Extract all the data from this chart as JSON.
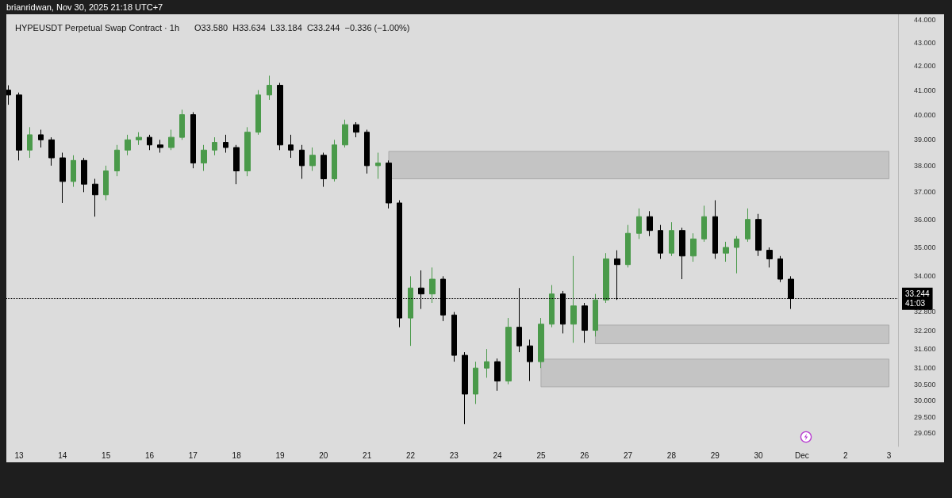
{
  "chart_data": {
    "type": "candlestick",
    "title": "HYPEUSDT Perpetual Swap Contract · 1h",
    "subtitle": "O33.580  H33.634  L33.184  C33.244  −0.336 (−1.00%)",
    "annotations": [
      "brianridwan, Nov 30, 2025 21:18 UTC+7"
    ],
    "x": [
      "2025-11-12T18:00",
      "2025-11-13T00:00",
      "2025-11-13T06:00",
      "2025-11-13T12:00",
      "2025-11-13T18:00",
      "2025-11-14T00:00",
      "2025-11-14T06:00",
      "2025-11-14T12:00",
      "2025-11-14T18:00",
      "2025-11-15T00:00",
      "2025-11-15T06:00",
      "2025-11-15T12:00",
      "2025-11-15T18:00",
      "2025-11-16T00:00",
      "2025-11-16T06:00",
      "2025-11-16T12:00",
      "2025-11-16T18:00",
      "2025-11-17T00:00",
      "2025-11-17T06:00",
      "2025-11-17T12:00",
      "2025-11-17T18:00",
      "2025-11-18T00:00",
      "2025-11-18T06:00",
      "2025-11-18T12:00",
      "2025-11-18T18:00",
      "2025-11-19T00:00",
      "2025-11-19T06:00",
      "2025-11-19T12:00",
      "2025-11-19T18:00",
      "2025-11-20T00:00",
      "2025-11-20T06:00",
      "2025-11-20T12:00",
      "2025-11-20T18:00",
      "2025-11-21T00:00",
      "2025-11-21T06:00",
      "2025-11-21T12:00",
      "2025-11-21T18:00",
      "2025-11-22T00:00",
      "2025-11-22T06:00",
      "2025-11-22T12:00",
      "2025-11-22T18:00",
      "2025-11-23T00:00",
      "2025-11-23T06:00",
      "2025-11-23T12:00",
      "2025-11-23T18:00",
      "2025-11-24T00:00",
      "2025-11-24T06:00",
      "2025-11-24T12:00",
      "2025-11-24T18:00",
      "2025-11-25T00:00",
      "2025-11-25T06:00",
      "2025-11-25T12:00",
      "2025-11-25T18:00",
      "2025-11-26T00:00",
      "2025-11-26T06:00",
      "2025-11-26T12:00",
      "2025-11-26T18:00",
      "2025-11-27T00:00",
      "2025-11-27T06:00",
      "2025-11-27T12:00",
      "2025-11-27T18:00",
      "2025-11-28T00:00",
      "2025-11-28T06:00",
      "2025-11-28T12:00",
      "2025-11-28T18:00",
      "2025-11-29T00:00",
      "2025-11-29T06:00",
      "2025-11-29T12:00",
      "2025-11-29T18:00",
      "2025-11-30T00:00",
      "2025-11-30T06:00",
      "2025-11-30T12:00",
      "2025-11-30T18:00"
    ],
    "ohlc": [
      [
        41.0,
        41.2,
        40.4,
        40.8
      ],
      [
        40.8,
        40.9,
        38.2,
        38.6
      ],
      [
        38.6,
        39.5,
        38.3,
        39.2
      ],
      [
        39.2,
        39.4,
        38.7,
        39.0
      ],
      [
        39.0,
        39.1,
        38.0,
        38.3
      ],
      [
        38.3,
        38.5,
        36.6,
        37.4
      ],
      [
        37.4,
        38.4,
        37.2,
        38.2
      ],
      [
        38.2,
        38.3,
        37.0,
        37.3
      ],
      [
        37.3,
        37.5,
        36.1,
        36.9
      ],
      [
        36.9,
        38.0,
        36.7,
        37.8
      ],
      [
        37.8,
        38.8,
        37.6,
        38.6
      ],
      [
        38.6,
        39.2,
        38.4,
        39.0
      ],
      [
        39.0,
        39.3,
        38.8,
        39.1
      ],
      [
        39.1,
        39.2,
        38.6,
        38.8
      ],
      [
        38.8,
        39.0,
        38.5,
        38.7
      ],
      [
        38.7,
        39.4,
        38.6,
        39.1
      ],
      [
        39.1,
        40.2,
        39.0,
        40.0
      ],
      [
        40.0,
        40.1,
        37.9,
        38.1
      ],
      [
        38.1,
        38.8,
        37.8,
        38.6
      ],
      [
        38.6,
        39.1,
        38.4,
        38.9
      ],
      [
        38.9,
        39.2,
        38.5,
        38.7
      ],
      [
        38.7,
        38.8,
        37.3,
        37.8
      ],
      [
        37.8,
        39.5,
        37.6,
        39.3
      ],
      [
        39.3,
        41.0,
        39.2,
        40.8
      ],
      [
        40.8,
        41.6,
        40.6,
        41.2
      ],
      [
        41.2,
        41.3,
        38.6,
        38.8
      ],
      [
        38.8,
        39.2,
        38.3,
        38.6
      ],
      [
        38.6,
        38.8,
        37.5,
        38.0
      ],
      [
        38.0,
        38.7,
        37.8,
        38.4
      ],
      [
        38.4,
        38.5,
        37.2,
        37.5
      ],
      [
        37.5,
        39.0,
        37.4,
        38.8
      ],
      [
        38.8,
        39.8,
        38.7,
        39.6
      ],
      [
        39.6,
        39.7,
        39.1,
        39.3
      ],
      [
        39.3,
        39.4,
        37.7,
        38.0
      ],
      [
        38.0,
        38.5,
        37.5,
        38.1
      ],
      [
        38.1,
        38.2,
        36.4,
        36.6
      ],
      [
        36.6,
        36.7,
        32.3,
        32.6
      ],
      [
        32.6,
        34.0,
        31.7,
        33.6
      ],
      [
        33.6,
        34.2,
        32.9,
        33.4
      ],
      [
        33.4,
        34.3,
        33.1,
        33.9
      ],
      [
        33.9,
        34.0,
        32.5,
        32.7
      ],
      [
        32.7,
        32.8,
        31.2,
        31.4
      ],
      [
        31.4,
        31.5,
        29.3,
        30.2
      ],
      [
        30.2,
        31.2,
        29.9,
        31.0
      ],
      [
        31.0,
        31.6,
        30.7,
        31.2
      ],
      [
        31.2,
        31.3,
        30.3,
        30.6
      ],
      [
        30.6,
        32.6,
        30.5,
        32.3
      ],
      [
        32.3,
        33.6,
        31.5,
        31.7
      ],
      [
        31.7,
        31.9,
        30.6,
        31.2
      ],
      [
        31.2,
        32.6,
        31.0,
        32.4
      ],
      [
        32.4,
        33.7,
        32.3,
        33.4
      ],
      [
        33.4,
        33.5,
        32.1,
        32.4
      ],
      [
        32.4,
        34.7,
        31.8,
        33.0
      ],
      [
        33.0,
        33.1,
        31.8,
        32.2
      ],
      [
        32.2,
        33.4,
        32.0,
        33.2
      ],
      [
        33.2,
        34.8,
        33.1,
        34.6
      ],
      [
        34.6,
        34.9,
        33.2,
        34.4
      ],
      [
        34.4,
        35.8,
        34.3,
        35.5
      ],
      [
        35.5,
        36.4,
        35.3,
        36.1
      ],
      [
        36.1,
        36.3,
        35.4,
        35.6
      ],
      [
        35.6,
        35.8,
        34.6,
        34.8
      ],
      [
        34.8,
        35.9,
        34.7,
        35.6
      ],
      [
        35.6,
        35.7,
        33.9,
        34.7
      ],
      [
        34.7,
        35.5,
        34.5,
        35.3
      ],
      [
        35.3,
        36.5,
        35.2,
        36.1
      ],
      [
        36.1,
        36.7,
        34.6,
        34.8
      ],
      [
        34.8,
        35.2,
        34.5,
        35.0
      ],
      [
        35.0,
        35.4,
        34.1,
        35.3
      ],
      [
        35.3,
        36.4,
        35.2,
        36.0
      ],
      [
        36.0,
        36.2,
        34.7,
        34.9
      ],
      [
        34.9,
        35.0,
        34.3,
        34.6
      ],
      [
        34.6,
        34.7,
        33.8,
        33.9
      ],
      [
        33.9,
        34.0,
        32.9,
        33.244
      ]
    ],
    "colors": [
      "#000000",
      "#000000",
      "#4a9a4a",
      "#000000",
      "#000000",
      "#000000",
      "#4a9a4a",
      "#000000",
      "#000000",
      "#4a9a4a",
      "#4a9a4a",
      "#4a9a4a",
      "#4a9a4a",
      "#000000",
      "#000000",
      "#4a9a4a",
      "#4a9a4a",
      "#000000",
      "#4a9a4a",
      "#4a9a4a",
      "#000000",
      "#000000",
      "#4a9a4a",
      "#4a9a4a",
      "#4a9a4a",
      "#000000",
      "#000000",
      "#000000",
      "#4a9a4a",
      "#000000",
      "#4a9a4a",
      "#4a9a4a",
      "#000000",
      "#000000",
      "#4a9a4a",
      "#000000",
      "#000000",
      "#4a9a4a",
      "#000000",
      "#4a9a4a",
      "#000000",
      "#000000",
      "#000000",
      "#4a9a4a",
      "#4a9a4a",
      "#000000",
      "#4a9a4a",
      "#000000",
      "#000000",
      "#4a9a4a",
      "#4a9a4a",
      "#000000",
      "#4a9a4a",
      "#000000",
      "#4a9a4a",
      "#4a9a4a",
      "#000000",
      "#4a9a4a",
      "#4a9a4a",
      "#000000",
      "#000000",
      "#4a9a4a",
      "#000000",
      "#4a9a4a",
      "#4a9a4a",
      "#000000",
      "#4a9a4a",
      "#4a9a4a",
      "#4a9a4a",
      "#000000",
      "#000000",
      "#000000",
      "#000000"
    ],
    "xlim": [
      "2025-11-12T17:00",
      "2025-12-03T05:00"
    ],
    "xticks": [
      {
        "value": "2025-11-13",
        "label": "13"
      },
      {
        "value": "2025-11-14",
        "label": "14"
      },
      {
        "value": "2025-11-15",
        "label": "15"
      },
      {
        "value": "2025-11-16",
        "label": "16"
      },
      {
        "value": "2025-11-17",
        "label": "17"
      },
      {
        "value": "2025-11-18",
        "label": "18"
      },
      {
        "value": "2025-11-19",
        "label": "19"
      },
      {
        "value": "2025-11-20",
        "label": "20"
      },
      {
        "value": "2025-11-21",
        "label": "21"
      },
      {
        "value": "2025-11-22",
        "label": "22"
      },
      {
        "value": "2025-11-23",
        "label": "23"
      },
      {
        "value": "2025-11-24",
        "label": "24"
      },
      {
        "value": "2025-11-25",
        "label": "25"
      },
      {
        "value": "2025-11-26",
        "label": "26"
      },
      {
        "value": "2025-11-27",
        "label": "27"
      },
      {
        "value": "2025-11-28",
        "label": "28"
      },
      {
        "value": "2025-11-29",
        "label": "29"
      },
      {
        "value": "2025-11-30",
        "label": "30"
      },
      {
        "value": "2025-12-01",
        "label": "Dec"
      },
      {
        "value": "2025-12-02",
        "label": "2"
      },
      {
        "value": "2025-12-03",
        "label": "3"
      }
    ],
    "ylim": [
      28.65,
      44.25
    ],
    "log": "y",
    "yticks": [
      {
        "value": 44,
        "label": "44.000"
      },
      {
        "value": 43,
        "label": "43.000"
      },
      {
        "value": 42,
        "label": "42.000"
      },
      {
        "value": 41,
        "label": "41.000"
      },
      {
        "value": 40,
        "label": "40.000"
      },
      {
        "value": 39,
        "label": "39.000"
      },
      {
        "value": 38,
        "label": "38.000"
      },
      {
        "value": 37,
        "label": "37.000"
      },
      {
        "value": 36,
        "label": "36.000"
      },
      {
        "value": 35,
        "label": "35.000"
      },
      {
        "value": 34,
        "label": "34.000"
      },
      {
        "value": 32.8,
        "label": "32.800"
      },
      {
        "value": 32.2,
        "label": "32.200"
      },
      {
        "value": 31.6,
        "label": "31.600"
      },
      {
        "value": 31,
        "label": "31.000"
      },
      {
        "value": 30.5,
        "label": "30.500"
      },
      {
        "value": 30,
        "label": "30.000"
      },
      {
        "value": 29.5,
        "label": "29.500"
      },
      {
        "value": 29.05,
        "label": "29.050"
      }
    ],
    "ref_lines": [
      {
        "axis": "y",
        "value": 33.244,
        "label": "33.244\n41:03",
        "color": "#000000",
        "line_style": "dotted"
      }
    ],
    "bands": [
      {
        "axis": "y",
        "from": 37.5,
        "to": 38.55,
        "color": "#c4c4c4"
      },
      {
        "axis": "y",
        "from": 31.77,
        "to": 32.37,
        "color": "#c4c4c4"
      },
      {
        "axis": "y",
        "from": 30.42,
        "to": 31.28,
        "color": "#c4c4c4"
      }
    ]
  }
}
